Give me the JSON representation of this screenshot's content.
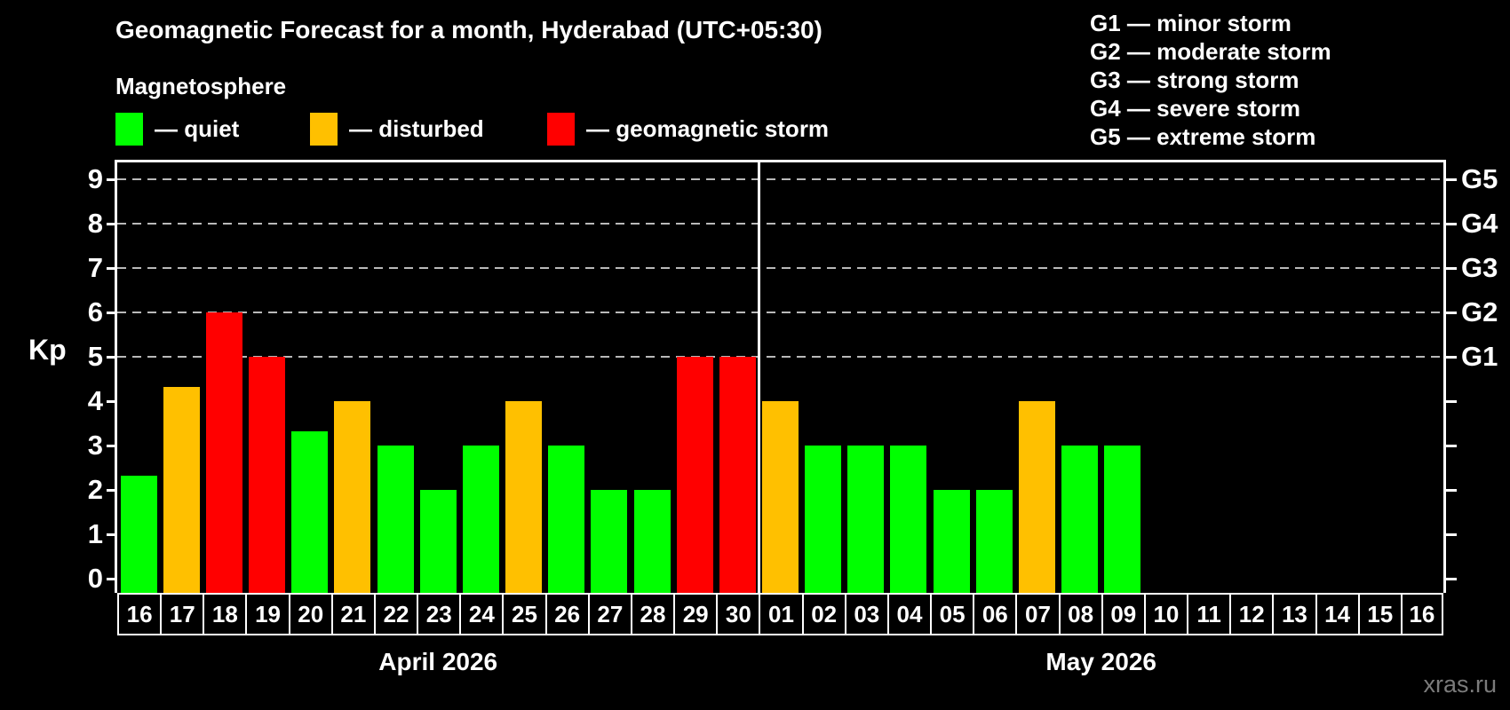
{
  "title": "Geomagnetic Forecast for a month, Hyderabad (UTC+05:30)",
  "subtitle": "Magnetosphere",
  "legend": {
    "items": [
      {
        "key": "quiet",
        "label": "— quiet",
        "color": "#00ff00"
      },
      {
        "key": "disturbed",
        "label": "— disturbed",
        "color": "#ffc000"
      },
      {
        "key": "storm",
        "label": "— geomagnetic storm",
        "color": "#ff0000"
      }
    ]
  },
  "g_legend": [
    "G1 — minor storm",
    "G2 — moderate storm",
    "G3 — strong storm",
    "G4 — severe storm",
    "G5 — extreme storm"
  ],
  "watermark": "xras.ru",
  "chart_data": {
    "type": "bar",
    "title": "Geomagnetic Forecast for a month, Hyderabad (UTC+05:30)",
    "ylabel": "Kp",
    "ylim": [
      0,
      9
    ],
    "yticks": [
      0,
      1,
      2,
      3,
      4,
      5,
      6,
      7,
      8,
      9
    ],
    "grid_levels": [
      5,
      6,
      7,
      8,
      9
    ],
    "grid": "dashed-horizontal-on-storm-levels-only",
    "legend_position": "top",
    "right_axis_labels": [
      {
        "kp": 5,
        "label": "G1"
      },
      {
        "kp": 6,
        "label": "G2"
      },
      {
        "kp": 7,
        "label": "G3"
      },
      {
        "kp": 8,
        "label": "G4"
      },
      {
        "kp": 9,
        "label": "G5"
      }
    ],
    "level_colors": {
      "quiet": "#00ff00",
      "disturbed": "#ffc000",
      "storm": "#ff0000"
    },
    "months": [
      {
        "label": "April 2026",
        "days": [
          {
            "day": "16",
            "kp": 2.33,
            "level": "quiet"
          },
          {
            "day": "17",
            "kp": 4.33,
            "level": "disturbed"
          },
          {
            "day": "18",
            "kp": 6,
            "level": "storm"
          },
          {
            "day": "19",
            "kp": 5,
            "level": "storm"
          },
          {
            "day": "20",
            "kp": 3.33,
            "level": "quiet"
          },
          {
            "day": "21",
            "kp": 4,
            "level": "disturbed"
          },
          {
            "day": "22",
            "kp": 3,
            "level": "quiet"
          },
          {
            "day": "23",
            "kp": 2,
            "level": "quiet"
          },
          {
            "day": "24",
            "kp": 3,
            "level": "quiet"
          },
          {
            "day": "25",
            "kp": 4,
            "level": "disturbed"
          },
          {
            "day": "26",
            "kp": 3,
            "level": "quiet"
          },
          {
            "day": "27",
            "kp": 2,
            "level": "quiet"
          },
          {
            "day": "28",
            "kp": 2,
            "level": "quiet"
          },
          {
            "day": "29",
            "kp": 5,
            "level": "storm"
          },
          {
            "day": "30",
            "kp": 5,
            "level": "storm"
          }
        ]
      },
      {
        "label": "May 2026",
        "days": [
          {
            "day": "01",
            "kp": 4,
            "level": "disturbed"
          },
          {
            "day": "02",
            "kp": 3,
            "level": "quiet"
          },
          {
            "day": "03",
            "kp": 3,
            "level": "quiet"
          },
          {
            "day": "04",
            "kp": 3,
            "level": "quiet"
          },
          {
            "day": "05",
            "kp": 2,
            "level": "quiet"
          },
          {
            "day": "06",
            "kp": 2,
            "level": "quiet"
          },
          {
            "day": "07",
            "kp": 4,
            "level": "disturbed"
          },
          {
            "day": "08",
            "kp": 3,
            "level": "quiet"
          },
          {
            "day": "09",
            "kp": 3,
            "level": "quiet"
          },
          {
            "day": "10",
            "kp": null,
            "level": null
          },
          {
            "day": "11",
            "kp": null,
            "level": null
          },
          {
            "day": "12",
            "kp": null,
            "level": null
          },
          {
            "day": "13",
            "kp": null,
            "level": null
          },
          {
            "day": "14",
            "kp": null,
            "level": null
          },
          {
            "day": "15",
            "kp": null,
            "level": null
          },
          {
            "day": "16",
            "kp": null,
            "level": null
          }
        ]
      }
    ]
  }
}
